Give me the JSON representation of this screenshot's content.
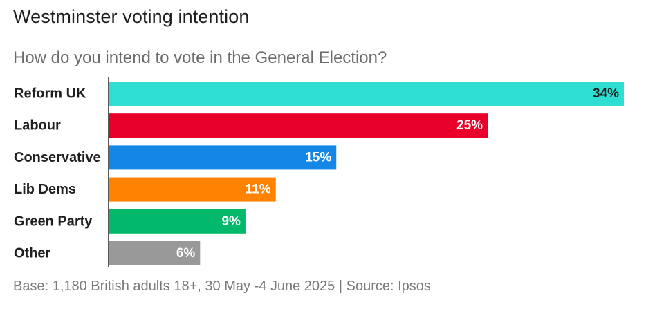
{
  "title": "Westminster voting intention",
  "subtitle": "How do you intend to vote in the General Election?",
  "footer": "Base: 1,180 British adults 18+, 30 May -4 June 2025 | Source: Ipsos",
  "chart_data": {
    "type": "bar",
    "orientation": "horizontal",
    "categories": [
      "Reform UK",
      "Labour",
      "Conservative",
      "Lib Dems",
      "Green Party",
      "Other"
    ],
    "values": [
      34,
      25,
      15,
      11,
      9,
      6
    ],
    "value_labels": [
      "34%",
      "25%",
      "15%",
      "11%",
      "9%",
      "6%"
    ],
    "colors": [
      "#2fded3",
      "#e8002a",
      "#1486e6",
      "#ff8200",
      "#02b96b",
      "#999999"
    ],
    "label_colors": [
      "#1f1f1f",
      "#ffffff",
      "#ffffff",
      "#ffffff",
      "#ffffff",
      "#ffffff"
    ],
    "xlim": [
      0,
      34
    ],
    "grid": false,
    "legend": "none"
  }
}
